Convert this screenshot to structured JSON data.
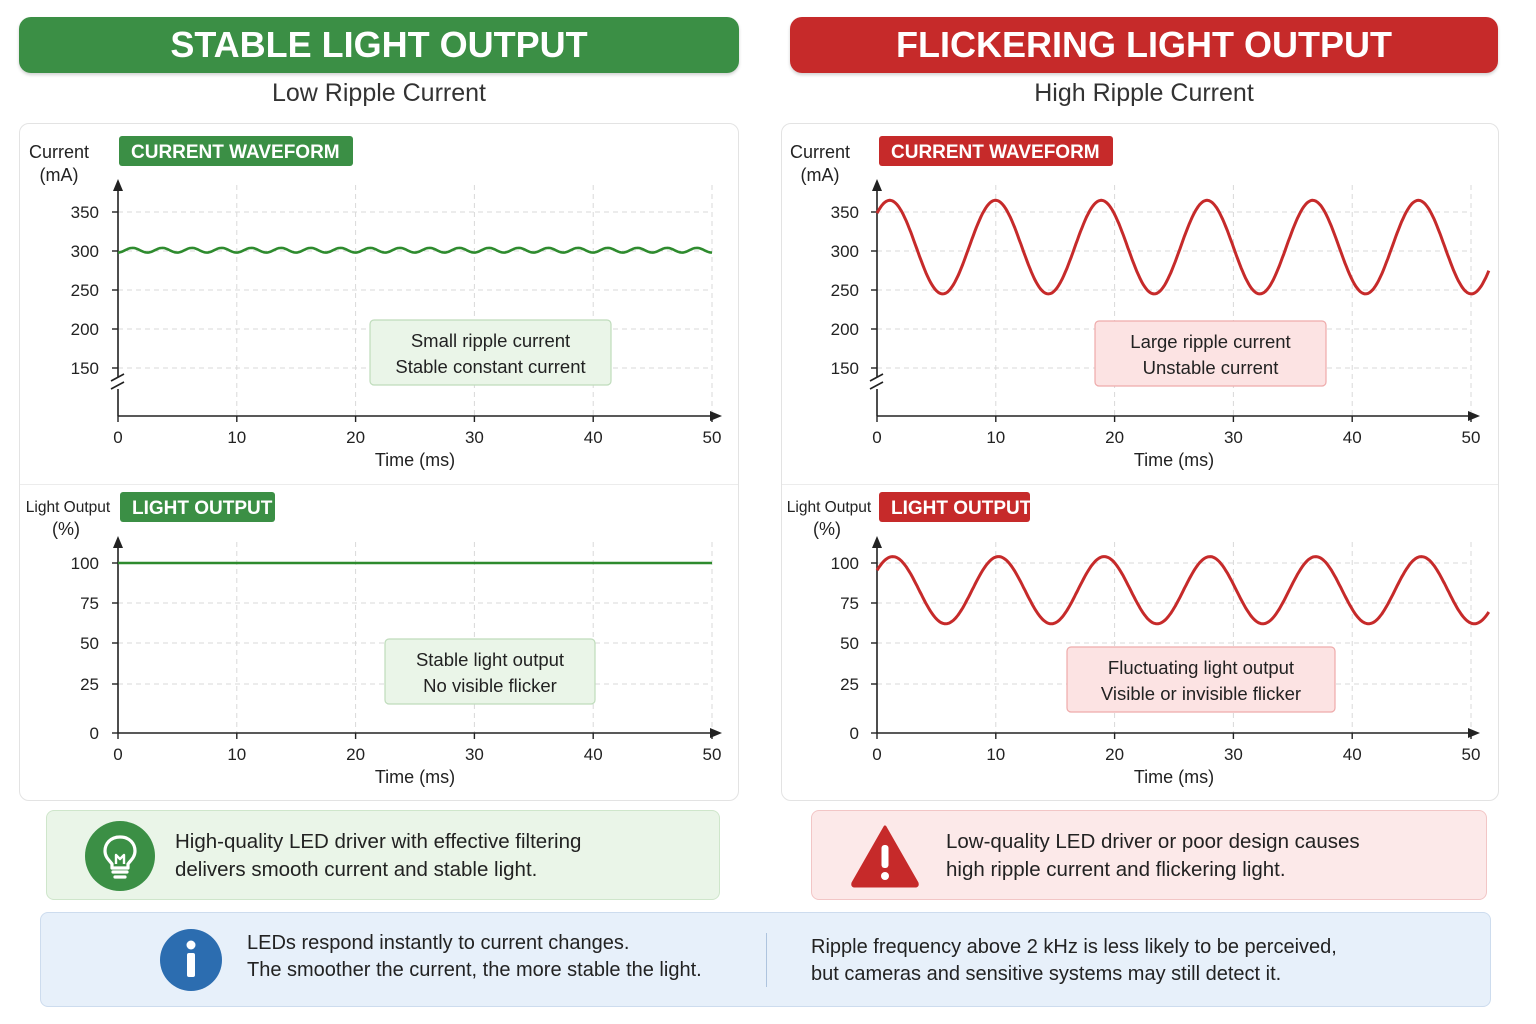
{
  "left": {
    "banner": "STABLE LIGHT OUTPUT",
    "subtitle": "Low Ripple Current",
    "accent": "#3b8f45",
    "line_color": "#2e8b2e",
    "callout_bg": "#eaf5e8",
    "callout_border": "#bfdcbb",
    "info_text_1": "High-quality LED driver with effective filtering",
    "info_text_2": "delivers smooth current and stable light.",
    "info_icon": "lightbulb-icon"
  },
  "right": {
    "banner": "FLICKERING LIGHT OUTPUT",
    "subtitle": "High Ripple Current",
    "accent": "#c62a2a",
    "line_color": "#c62a2a",
    "callout_bg": "#fce3e3",
    "callout_border": "#eeaaaa",
    "info_text_1": "Low-quality LED driver or poor design causes",
    "info_text_2": "high ripple current and flickering light.",
    "info_icon": "warning-triangle-icon"
  },
  "note": {
    "icon": "info-icon",
    "text_1": "LEDs respond instantly to current changes.",
    "text_2": "The smoother the current, the more stable the light.",
    "text_3": "Ripple frequency above 2 kHz is less likely to be perceived,",
    "text_4": "but cameras and sensitive systems may still detect it."
  },
  "chart_data": [
    {
      "id": "left-current",
      "type": "line",
      "title": "CURRENT WAVEFORM",
      "ylabel_1": "Current",
      "ylabel_2": "(mA)",
      "xlabel": "Time (ms)",
      "xticks": [
        0,
        10,
        20,
        30,
        40,
        50
      ],
      "yticks": [
        150,
        200,
        250,
        300,
        350
      ],
      "axis_break": true,
      "xlim": [
        0,
        50
      ],
      "ylim": [
        120,
        370
      ],
      "callout": [
        "Small ripple current",
        "Stable constant current"
      ],
      "series": [
        {
          "shape": "sine",
          "mean": 301,
          "amplitude": 3,
          "period_ms": 2.5,
          "phase_ms": 0.6
        }
      ]
    },
    {
      "id": "left-light",
      "type": "line",
      "title": "LIGHT OUTPUT",
      "ylabel_1": "Light Output",
      "ylabel_2": "(%)",
      "xlabel": "Time (ms)",
      "xticks": [
        0,
        10,
        20,
        30,
        40,
        50
      ],
      "yticks": [
        0,
        25,
        50,
        75,
        100
      ],
      "axis_break": false,
      "xlim": [
        0,
        50
      ],
      "ylim": [
        0,
        105
      ],
      "callout": [
        "Stable light output",
        "No visible flicker"
      ],
      "series": [
        {
          "shape": "flat",
          "mean": 100
        }
      ]
    },
    {
      "id": "right-current",
      "type": "line",
      "title": "CURRENT WAVEFORM",
      "ylabel_1": "Current",
      "ylabel_2": "(mA)",
      "xlabel": "Time (ms)",
      "xticks": [
        0,
        10,
        20,
        30,
        40,
        50
      ],
      "yticks": [
        150,
        200,
        250,
        300,
        350
      ],
      "axis_break": true,
      "xlim": [
        0,
        51.5
      ],
      "ylim": [
        120,
        370
      ],
      "callout": [
        "Large ripple current",
        "Unstable current"
      ],
      "series": [
        {
          "shape": "sine",
          "mean": 305,
          "amplitude": 60,
          "period_ms": 8.9,
          "phase_ms": -1.15
        }
      ]
    },
    {
      "id": "right-light",
      "type": "line",
      "title": "LIGHT OUTPUT",
      "ylabel_1": "Light Output",
      "ylabel_2": "(%)",
      "xlabel": "Time (ms)",
      "xticks": [
        0,
        10,
        20,
        30,
        40,
        50
      ],
      "yticks": [
        0,
        25,
        50,
        75,
        100
      ],
      "axis_break": false,
      "xlim": [
        0,
        51.5
      ],
      "ylim": [
        0,
        105
      ],
      "callout": [
        "Fluctuating light output",
        "Visible or invisible flicker"
      ],
      "series": [
        {
          "shape": "sine",
          "mean": 83,
          "amplitude": 21,
          "period_ms": 8.9,
          "phase_ms": -0.9
        }
      ]
    }
  ]
}
